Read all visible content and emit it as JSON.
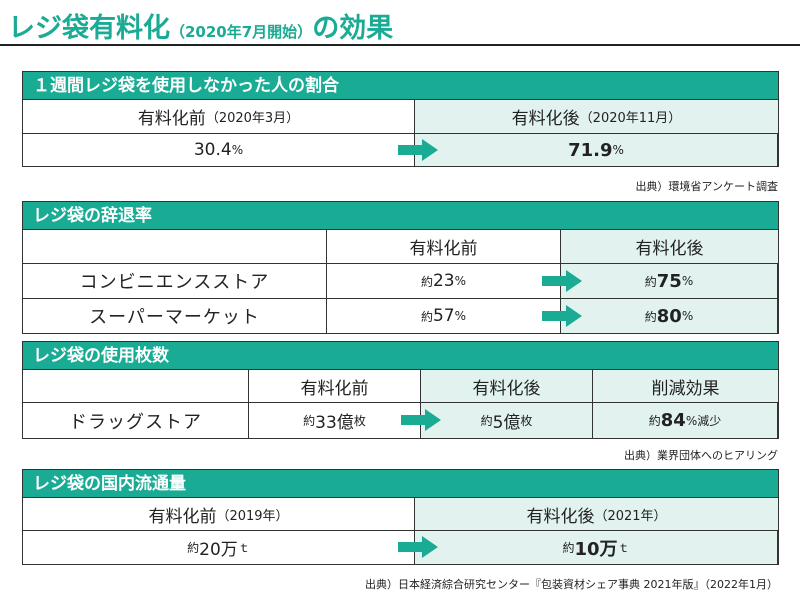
{
  "page": {
    "title": "レジ袋有料化",
    "title_sub": "（2020年7月開始）",
    "title_tail": "の効果"
  },
  "colors": {
    "accent": "#1aab94",
    "shade": "#e2f3ef"
  },
  "section1": {
    "title": "１週間レジ袋を使用しなかった人の割合",
    "before_label": "有料化前",
    "before_date": "（2020年3月）",
    "after_label": "有料化後",
    "after_date": "（2020年11月）",
    "before_value": "30.4",
    "before_unit": "%",
    "after_value": "71.9",
    "after_unit": "%",
    "source": "出典）環境省アンケート調査"
  },
  "section2": {
    "title": "レジ袋の辞退率",
    "col_before": "有料化前",
    "col_after": "有料化後",
    "rows": [
      {
        "label": "コンビニエンスストア",
        "before_prefix": "約",
        "before_value": "23",
        "before_unit": "%",
        "after_prefix": "約",
        "after_value": "75",
        "after_unit": "%"
      },
      {
        "label": "スーパーマーケット",
        "before_prefix": "約",
        "before_value": "57",
        "before_unit": "%",
        "after_prefix": "約",
        "after_value": "80",
        "after_unit": "%"
      }
    ]
  },
  "section3": {
    "title": "レジ袋の使用枚数",
    "col_before": "有料化前",
    "col_after": "有料化後",
    "col_effect": "削減効果",
    "row_label": "ドラッグストア",
    "before_prefix": "約",
    "before_value": "33億",
    "before_unit": "枚",
    "after_prefix": "約",
    "after_value": "5億",
    "after_unit": "枚",
    "effect_prefix": "約",
    "effect_value": "84",
    "effect_unit": "%減少",
    "source": "出典）業界団体へのヒアリング"
  },
  "section4": {
    "title": "レジ袋の国内流通量",
    "before_label": "有料化前",
    "before_date": "（2019年）",
    "after_label": "有料化後",
    "after_date": "（2021年）",
    "before_prefix": "約",
    "before_value": "20万",
    "before_unit": "ｔ",
    "after_prefix": "約",
    "after_value": "10万",
    "after_unit": "ｔ",
    "source": "出典）日本経済綜合研究センター『包装資材シェア事典 2021年版』（2022年1月）"
  }
}
